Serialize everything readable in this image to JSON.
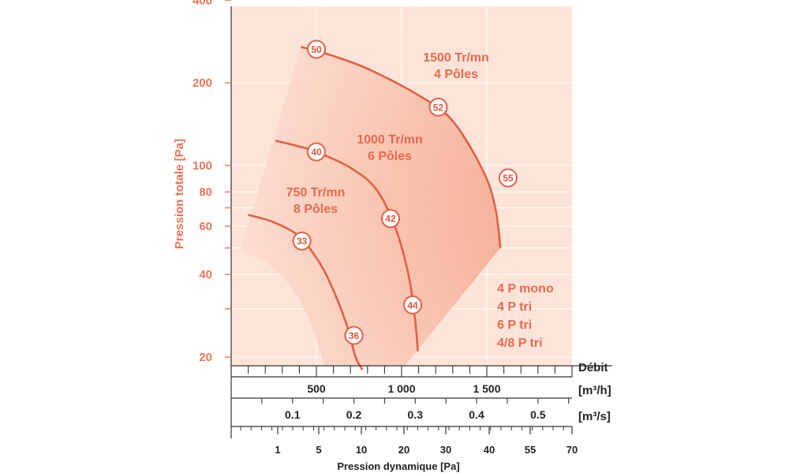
{
  "chart_data": {
    "type": "line",
    "title": "",
    "ylabel": "Pression totale [Pa]",
    "xlabel": "Pression dynamique [Pa]",
    "y_scale": "log",
    "ylim": [
      18,
      400
    ],
    "y_ticks": [
      {
        "v": 400,
        "label": "400"
      },
      {
        "v": 200,
        "label": "200"
      },
      {
        "v": 100,
        "label": "100"
      },
      {
        "v": 80,
        "label": "80"
      },
      {
        "v": 70,
        "label": ""
      },
      {
        "v": 60,
        "label": "60"
      },
      {
        "v": 50,
        "label": ""
      },
      {
        "v": 40,
        "label": "40"
      },
      {
        "v": 30,
        "label": ""
      },
      {
        "v": 20,
        "label": "20"
      }
    ],
    "xlim_m3h": [
      0,
      2000
    ],
    "flow_label": "Débit",
    "flow_m3h": {
      "unit": "[m³/h]",
      "ticks": [
        {
          "v": 500,
          "label": "500"
        },
        {
          "v": 1000,
          "label": "1 000"
        },
        {
          "v": 1500,
          "label": "1 500"
        }
      ]
    },
    "flow_m3s": {
      "unit": "[m³/s]",
      "ticks": [
        {
          "v": 0.1,
          "label": "0.1"
        },
        {
          "v": 0.2,
          "label": "0.2"
        },
        {
          "v": 0.3,
          "label": "0.3"
        },
        {
          "v": 0.4,
          "label": "0.4"
        },
        {
          "v": 0.5,
          "label": "0.5"
        }
      ]
    },
    "dyn_pressure": {
      "ticks": [
        {
          "v": 1,
          "label": "1"
        },
        {
          "v": 5,
          "label": "5"
        },
        {
          "v": 10,
          "label": "10"
        },
        {
          "v": 20,
          "label": "20"
        },
        {
          "v": 30,
          "label": "30"
        },
        {
          "v": 40,
          "label": "40"
        },
        {
          "v": 55,
          "label": "55"
        },
        {
          "v": 70,
          "label": "70"
        }
      ]
    },
    "series": [
      {
        "name": "1500 Tr/mn",
        "line1": "1500 Tr/mn",
        "line2": "4 Pôles",
        "points": [
          [
            410,
            270
          ],
          [
            560,
            255
          ],
          [
            800,
            225
          ],
          [
            1100,
            180
          ],
          [
            1300,
            145
          ],
          [
            1480,
            95
          ],
          [
            1550,
            70
          ],
          [
            1580,
            50
          ]
        ],
        "markers": [
          {
            "x": 500,
            "y": 265,
            "label": "50"
          },
          {
            "x": 1215,
            "y": 163,
            "label": "52"
          },
          {
            "x": 1625,
            "y": 90,
            "label": "55"
          }
        ]
      },
      {
        "name": "1000 Tr/mn",
        "line1": "1000 Tr/mn",
        "line2": "6 Pôles",
        "points": [
          [
            260,
            123
          ],
          [
            380,
            118
          ],
          [
            500,
            112
          ],
          [
            700,
            98
          ],
          [
            850,
            82
          ],
          [
            960,
            60
          ],
          [
            1040,
            40
          ],
          [
            1080,
            27
          ],
          [
            1095,
            21
          ]
        ],
        "markers": [
          {
            "x": 500,
            "y": 112,
            "label": "40"
          },
          {
            "x": 935,
            "y": 64,
            "label": "42"
          },
          {
            "x": 1065,
            "y": 31,
            "label": "44"
          }
        ]
      },
      {
        "name": "750 Tr/mn",
        "line1": "750 Tr/mn",
        "line2": "8 Pôles",
        "points": [
          [
            100,
            66
          ],
          [
            250,
            62
          ],
          [
            400,
            55
          ],
          [
            520,
            44
          ],
          [
            600,
            35
          ],
          [
            680,
            26
          ],
          [
            730,
            20
          ],
          [
            770,
            18
          ]
        ],
        "markers": [
          {
            "x": 415,
            "y": 53,
            "label": "33"
          },
          {
            "x": 720,
            "y": 24,
            "label": "36"
          }
        ]
      }
    ],
    "variants": [
      "4 P mono",
      "4 P tri",
      "6 P tri",
      "4/8 P tri"
    ]
  }
}
